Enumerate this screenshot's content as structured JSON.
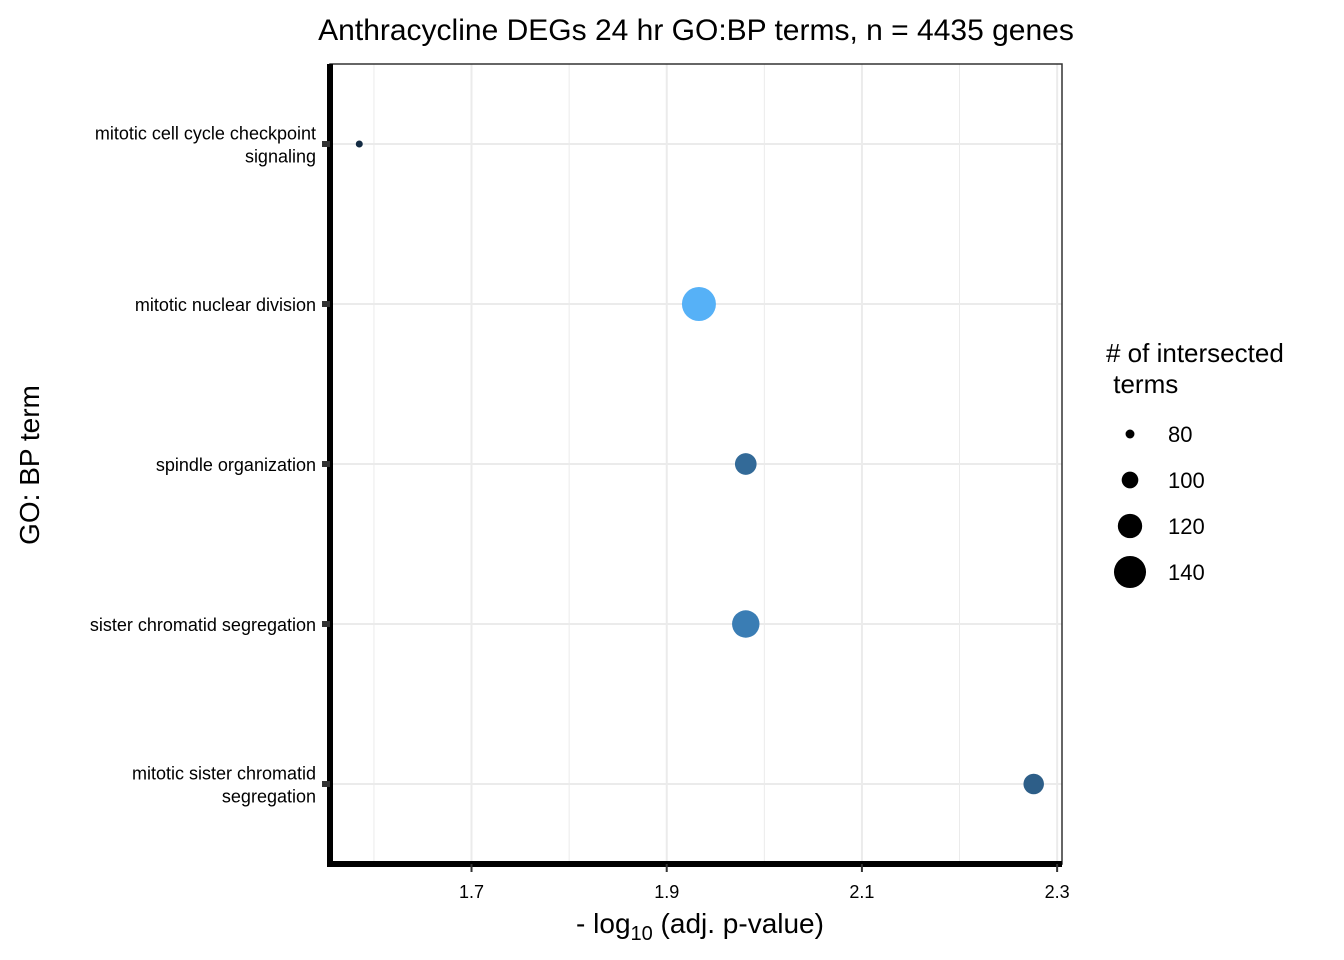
{
  "chart_data": {
    "type": "scatter",
    "title": "Anthracycline DEGs 24 hr GO:BP terms, n = 4435 genes",
    "xlabel": {
      "prefix": "- log",
      "subscript": "10",
      "suffix": " (adj. p-value)"
    },
    "ylabel": "GO: BP term",
    "xlim": [
      1.555,
      2.305
    ],
    "x_ticks": [
      {
        "value": 1.7,
        "label": "1.7"
      },
      {
        "value": 1.9,
        "label": "1.9"
      },
      {
        "value": 2.1,
        "label": "2.1"
      },
      {
        "value": 2.3,
        "label": "2.3"
      }
    ],
    "x_minor_ticks": [
      1.6,
      1.8,
      2.0,
      2.2
    ],
    "grid": true,
    "categories": [
      [
        "mitotic cell cycle checkpoint",
        "signaling"
      ],
      [
        "mitotic nuclear division"
      ],
      [
        "spindle organization"
      ],
      [
        "sister chromatid segregation"
      ],
      [
        "mitotic sister chromatid",
        "segregation"
      ]
    ],
    "points": [
      {
        "category_index": 0,
        "x": 1.585,
        "size": 75,
        "color": "#132B43"
      },
      {
        "category_index": 1,
        "x": 1.933,
        "size": 145,
        "color": "#56B1F7"
      },
      {
        "category_index": 2,
        "x": 1.981,
        "size": 113,
        "color": "#336A98"
      },
      {
        "category_index": 3,
        "x": 1.981,
        "size": 128,
        "color": "#3A7DB4"
      },
      {
        "category_index": 4,
        "x": 2.276,
        "size": 110,
        "color": "#2D5E88"
      }
    ],
    "legend": {
      "title": [
        "# of intersected",
        " terms"
      ],
      "placement": "right",
      "entries": [
        {
          "label": "80",
          "size": 80
        },
        {
          "label": "100",
          "size": 100
        },
        {
          "label": "120",
          "size": 120
        },
        {
          "label": "140",
          "size": 140
        }
      ]
    }
  }
}
